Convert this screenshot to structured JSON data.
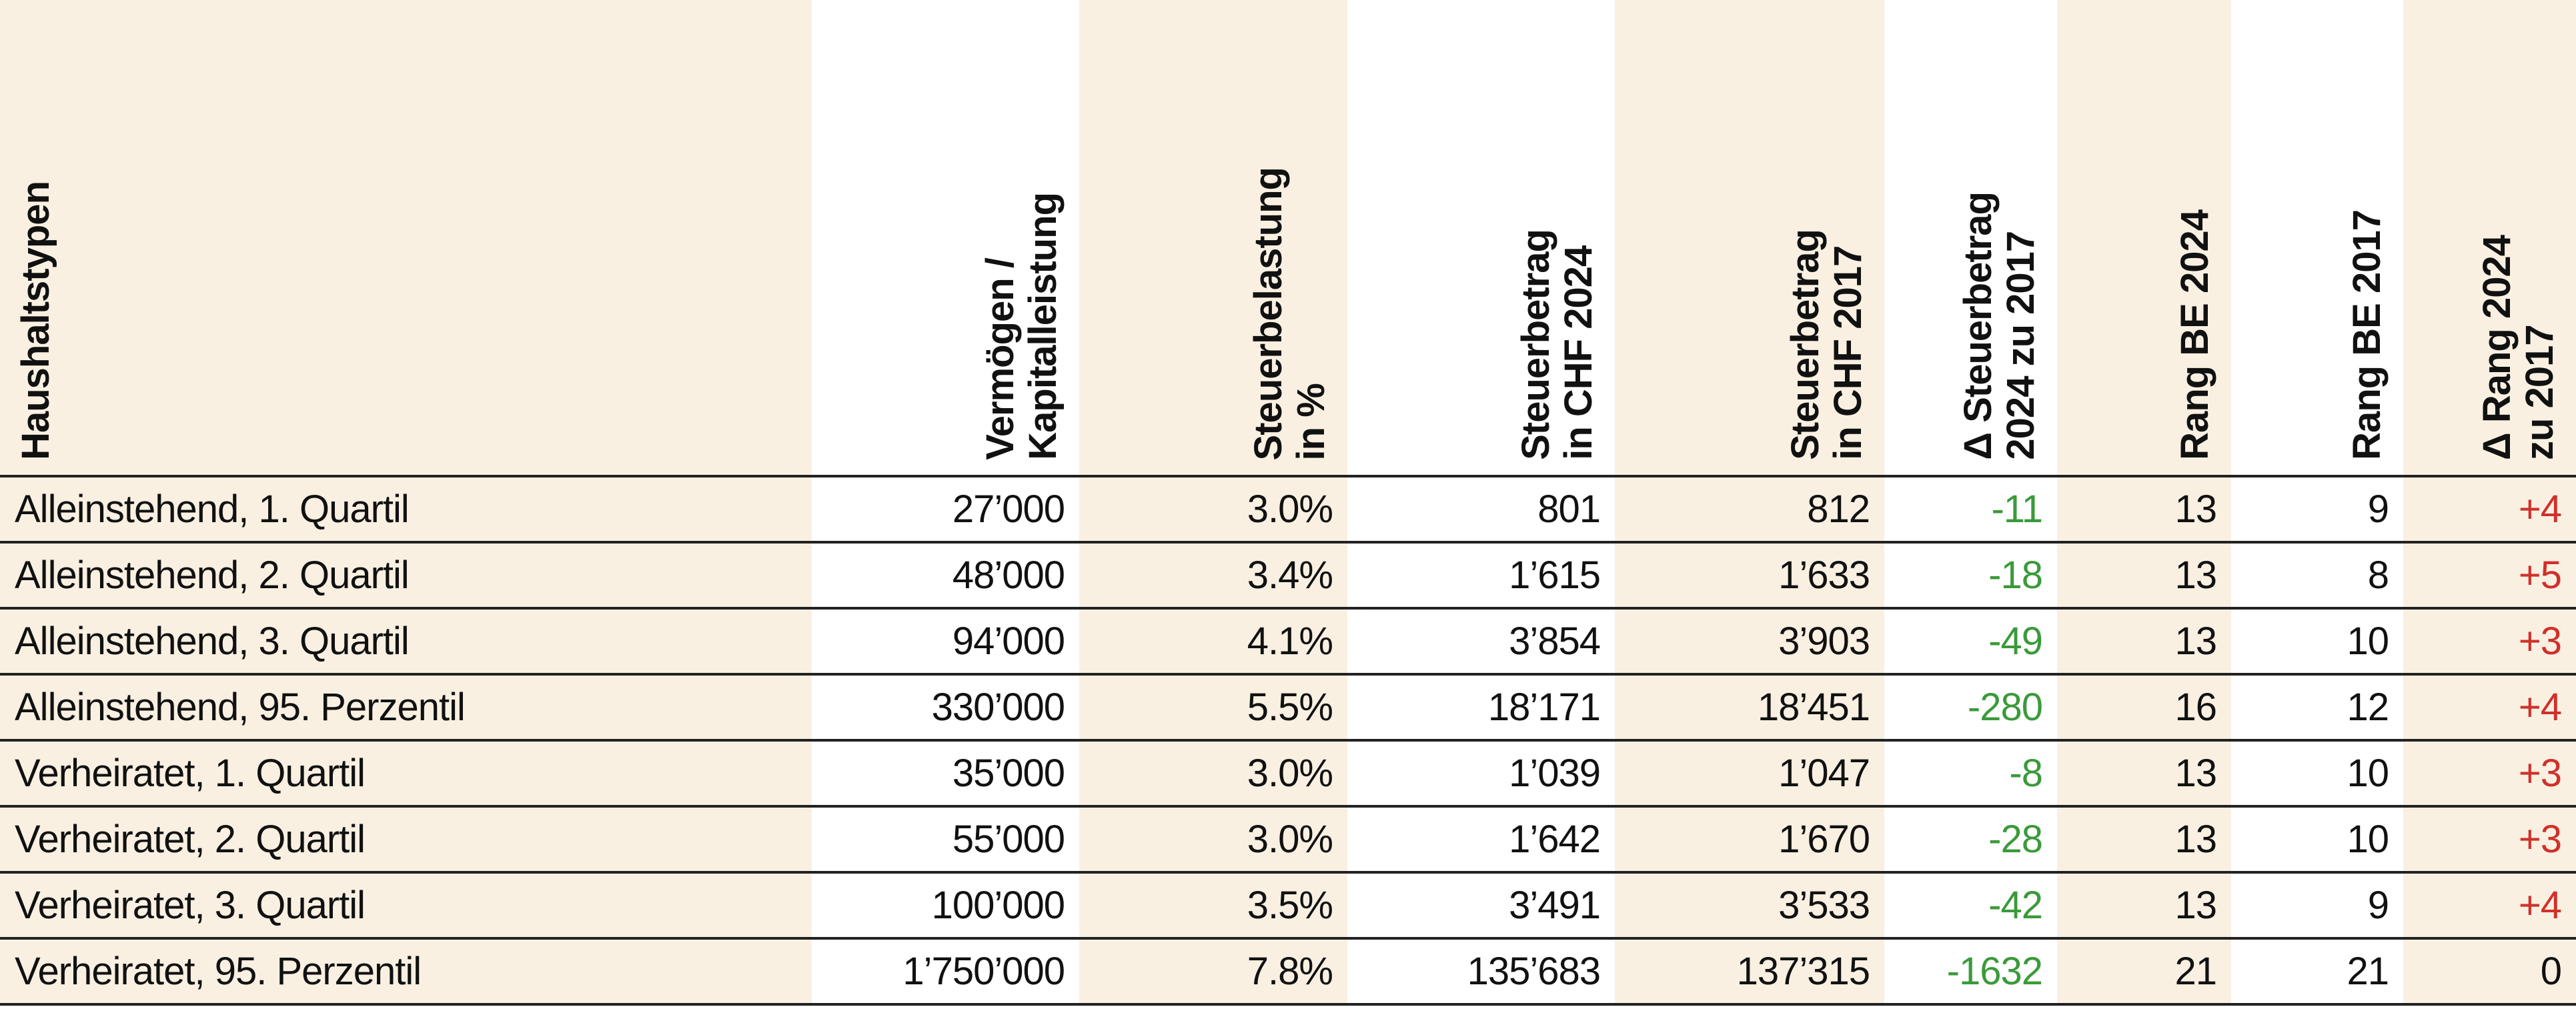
{
  "headers": [
    {
      "lines": [
        "Haushaltstypen"
      ]
    },
    {
      "lines": [
        "Vermögen /",
        "Kapitalleistung"
      ]
    },
    {
      "lines": [
        "Steuerbelastung",
        "in %"
      ]
    },
    {
      "lines": [
        "Steuerbetrag",
        "in CHF 2024"
      ]
    },
    {
      "lines": [
        "Steuerbetrag",
        "in CHF 2017"
      ]
    },
    {
      "lines": [
        "Δ Steuerbetrag",
        "2024 zu 2017"
      ]
    },
    {
      "lines": [
        "Rang BE 2024"
      ]
    },
    {
      "lines": [
        "Rang BE 2017"
      ]
    },
    {
      "lines": [
        "Δ Rang 2024",
        "zu 2017"
      ]
    }
  ],
  "rows": [
    [
      "Alleinstehend, 1. Quartil",
      "27’000",
      "3.0%",
      "801",
      "812",
      "-11",
      "13",
      "9",
      "+4"
    ],
    [
      "Alleinstehend, 2. Quartil",
      "48’000",
      "3.4%",
      "1’615",
      "1’633",
      "-18",
      "13",
      "8",
      "+5"
    ],
    [
      "Alleinstehend, 3. Quartil",
      "94’000",
      "4.1%",
      "3’854",
      "3’903",
      "-49",
      "13",
      "10",
      "+3"
    ],
    [
      "Alleinstehend, 95. Perzentil",
      "330’000",
      "5.5%",
      "18’171",
      "18’451",
      "-280",
      "16",
      "12",
      "+4"
    ],
    [
      "Verheiratet, 1. Quartil",
      "35’000",
      "3.0%",
      "1’039",
      "1’047",
      "-8",
      "13",
      "10",
      "+3"
    ],
    [
      "Verheiratet, 2. Quartil",
      "55’000",
      "3.0%",
      "1’642",
      "1’670",
      "-28",
      "13",
      "10",
      "+3"
    ],
    [
      "Verheiratet, 3. Quartil",
      "100’000",
      "3.5%",
      "3’491",
      "3’533",
      "-42",
      "13",
      "9",
      "+4"
    ],
    [
      "Verheiratet, 95. Perzentil",
      "1’750’000",
      "7.8%",
      "135’683",
      "137’315",
      "-1632",
      "21",
      "21",
      "0"
    ]
  ],
  "colors": {
    "background_beige": "#f9f0e2",
    "negative": "#3a9a3a",
    "positive": "#d0302a"
  }
}
